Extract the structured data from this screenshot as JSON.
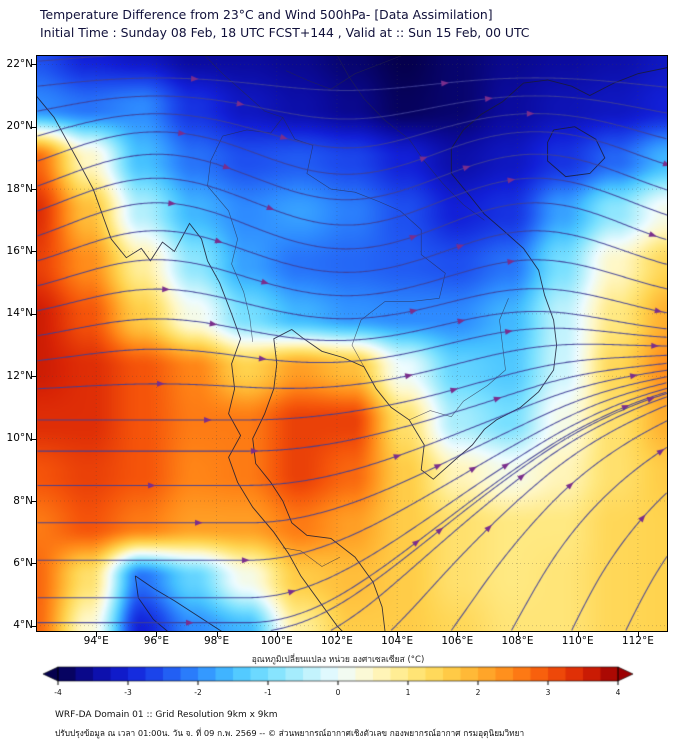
{
  "header": {
    "title_line1": "Temperature Difference from 23°C and Wind 500hPa- [Data Assimilation]",
    "title_line2": "Initial Time : Sunday 08 Feb, 18 UTC FCST+144 , Valid at ::  Sun 15 Feb, 00 UTC"
  },
  "axes": {
    "y_values": [
      22,
      20,
      18,
      16,
      14,
      12,
      10,
      8,
      6,
      4
    ],
    "y_ticks": [
      "22°N",
      "20°N",
      "18°N",
      "16°N",
      "14°N",
      "12°N",
      "10°N",
      "8°N",
      "6°N",
      "4°N"
    ],
    "x_values": [
      94,
      96,
      98,
      100,
      102,
      104,
      106,
      108,
      110,
      112
    ],
    "x_ticks": [
      "94°E",
      "96°E",
      "98°E",
      "100°E",
      "102°E",
      "104°E",
      "106°E",
      "108°E",
      "110°E",
      "112°E"
    ]
  },
  "colorbar": {
    "label": "อุณหภูมิเปลี่ยนแปลง หน่วย องศาเซลเซียส (°C)",
    "ticks": [
      -4,
      -3,
      -2,
      -1,
      0,
      1,
      2,
      3,
      4
    ],
    "min": -4,
    "max": 4,
    "segment_step": 0.25
  },
  "footer": {
    "line1": "WRF-DA Domain 01 :: Grid Resolution 9km x 9km",
    "line2": "ปรับปรุงข้อมูล ณ เวลา 01:00น. วัน จ. ที่ 09 ก.พ. 2569 -- © ส่วนพยากรณ์อากาศเชิงตัวเลข กองพยากรณ์อากาศ กรมอุตุนิยมวิทยา"
  },
  "chart_data": {
    "type": "heatmap",
    "title": "Temperature Difference from 23°C and Wind 500hPa- [Data Assimilation]",
    "variable": "temperature difference from 23°C (°C) with 500hPa wind streamlines",
    "lon_range": [
      92,
      113
    ],
    "lat_range": [
      3.8,
      22.3
    ],
    "grid": {
      "lons": [
        92,
        93.75,
        95.5,
        97.25,
        99,
        100.75,
        102.5,
        104.25,
        106,
        107.75,
        109.5,
        111.25,
        113
      ],
      "lats": [
        22.3,
        20.62,
        18.94,
        17.25,
        15.57,
        13.89,
        12.21,
        10.52,
        8.84,
        7.16,
        5.48,
        3.8
      ],
      "values": [
        [
          -2.5,
          -3,
          -3.2,
          -3.5,
          -3.5,
          -3.6,
          -3.8,
          -4,
          -3.8,
          -3.6,
          -3.5,
          -3.4,
          -3.2
        ],
        [
          -2,
          -2.2,
          -2,
          -2.8,
          -3.2,
          -3.4,
          -3.6,
          -3.9,
          -3.8,
          -3.5,
          -3.3,
          -3.2,
          -3
        ],
        [
          2.8,
          0.5,
          -1.5,
          -2.2,
          -2.5,
          -2.4,
          -2.6,
          -3,
          -3.4,
          -3.2,
          -2.8,
          -2.3,
          -1.6
        ],
        [
          3.4,
          1.8,
          -0.5,
          -1.6,
          -2,
          -1.8,
          -2.1,
          -2.5,
          -3,
          -2.8,
          -1.8,
          -0.8,
          0.2
        ],
        [
          3.2,
          2.4,
          0.8,
          -0.8,
          -1.8,
          -2.2,
          -2.3,
          -2.4,
          -2.5,
          -2.2,
          -1,
          0.5,
          1.4
        ],
        [
          3.6,
          3,
          1.6,
          0.2,
          -1,
          -1.6,
          -1.9,
          -2,
          -2,
          -1.6,
          -0.4,
          1,
          2
        ],
        [
          3.6,
          3.4,
          3,
          2.5,
          1.5,
          2.2,
          1.8,
          0,
          -1.2,
          -1.4,
          -0.3,
          1.4,
          2.4
        ],
        [
          3.4,
          3.4,
          3,
          2.6,
          2.6,
          3.2,
          3.2,
          1.2,
          -0.6,
          -1,
          0.2,
          1.2,
          2
        ],
        [
          3,
          3.2,
          3,
          2.5,
          2.6,
          3.2,
          2.8,
          1.6,
          0.6,
          0.2,
          0.6,
          1.2,
          1.6
        ],
        [
          2.6,
          3,
          2.6,
          2.2,
          2.2,
          2.6,
          2.2,
          1.6,
          1.2,
          1,
          1,
          1.4,
          1.5
        ],
        [
          2.8,
          1.2,
          -2.2,
          -1.2,
          0.2,
          1.6,
          1.8,
          1.6,
          1.2,
          1,
          1.1,
          1.4,
          1.5
        ],
        [
          2.8,
          0.4,
          -3,
          -2,
          -1.6,
          0.8,
          1.6,
          1.6,
          1.4,
          1.1,
          1.1,
          1.4,
          1.5
        ]
      ]
    },
    "color_scale": [
      [
        -4.0,
        "#05004d"
      ],
      [
        -3.5,
        "#0b0b9e"
      ],
      [
        -3.0,
        "#1220d8"
      ],
      [
        -2.5,
        "#1e50f0"
      ],
      [
        -2.0,
        "#2e8bff"
      ],
      [
        -1.5,
        "#46c2ff"
      ],
      [
        -1.0,
        "#78e0ff"
      ],
      [
        -0.5,
        "#b4f0fc"
      ],
      [
        0.0,
        "#eefcff"
      ],
      [
        0.5,
        "#fff8c8"
      ],
      [
        1.0,
        "#ffe982"
      ],
      [
        1.5,
        "#ffd34e"
      ],
      [
        2.0,
        "#ffb02f"
      ],
      [
        2.5,
        "#ff8517"
      ],
      [
        3.0,
        "#f5540a"
      ],
      [
        3.5,
        "#d92405"
      ],
      [
        4.0,
        "#9c0002"
      ]
    ],
    "wind": {
      "level": "500hPa",
      "style": "streamlines",
      "line_color": "#3f3f96",
      "arrow_color": "#7a2e8c",
      "pattern": "westerlies across the north with a trough near 99E; south-westerly flow curving northeast over the South China Sea in the south",
      "u0": 0.45,
      "u_lat_gain": 0.75,
      "wave_amp": 0.38,
      "wave_k": 0.5,
      "wave_ref_lon": 96,
      "fan_strength": 0.9,
      "seeds_left_lats": [
        22.1,
        21.3,
        20.5,
        19.7,
        18.9,
        18.1,
        17.3,
        16.5,
        15.7,
        14.9,
        14.1,
        13.3,
        12.5,
        11.6,
        10.6,
        9.6,
        8.5,
        7.3,
        6.1,
        4.9,
        4.1
      ],
      "seeds_bottom_lons": [
        99.8,
        101.8,
        103.8,
        105.8,
        107.8,
        109.8,
        111.6
      ]
    },
    "graticule": {
      "dash": "1,3",
      "color": "#444444",
      "opacity": 0.35
    },
    "map_outlines": {
      "coast": [
        [
          [
            92.0,
            21.0
          ],
          [
            92.6,
            20.3
          ],
          [
            93.0,
            19.6
          ],
          [
            93.4,
            18.9
          ],
          [
            93.9,
            18.0
          ],
          [
            94.2,
            17.2
          ],
          [
            94.5,
            16.4
          ],
          [
            95.0,
            15.8
          ],
          [
            95.5,
            16.1
          ],
          [
            95.8,
            15.7
          ],
          [
            96.2,
            16.3
          ],
          [
            96.6,
            16.0
          ],
          [
            97.1,
            16.9
          ],
          [
            97.5,
            16.4
          ],
          [
            97.7,
            15.7
          ],
          [
            98.1,
            15.0
          ],
          [
            98.5,
            14.0
          ],
          [
            98.8,
            13.2
          ],
          [
            98.5,
            12.4
          ],
          [
            98.6,
            11.6
          ],
          [
            98.4,
            10.8
          ],
          [
            98.8,
            10.1
          ],
          [
            98.4,
            9.4
          ],
          [
            98.7,
            8.6
          ],
          [
            99.2,
            7.8
          ],
          [
            99.9,
            7.0
          ],
          [
            100.4,
            6.3
          ],
          [
            100.8,
            5.6
          ],
          [
            101.4,
            4.8
          ],
          [
            102.0,
            4.0
          ],
          [
            102.2,
            3.8
          ]
        ],
        [
          [
            103.6,
            3.8
          ],
          [
            103.5,
            4.6
          ],
          [
            103.2,
            5.4
          ],
          [
            102.6,
            6.2
          ],
          [
            101.8,
            6.8
          ],
          [
            101.0,
            6.9
          ],
          [
            100.5,
            7.3
          ],
          [
            100.2,
            8.0
          ],
          [
            99.8,
            8.6
          ],
          [
            99.3,
            9.2
          ],
          [
            99.2,
            10.0
          ],
          [
            99.6,
            10.8
          ],
          [
            99.9,
            11.6
          ],
          [
            100.0,
            12.4
          ],
          [
            99.9,
            13.2
          ],
          [
            100.5,
            13.5
          ],
          [
            100.9,
            13.2
          ],
          [
            101.5,
            12.8
          ],
          [
            102.2,
            12.6
          ],
          [
            102.9,
            12.3
          ],
          [
            103.3,
            11.6
          ],
          [
            103.8,
            11.0
          ],
          [
            104.4,
            10.6
          ],
          [
            104.9,
            9.8
          ],
          [
            104.8,
            9.0
          ],
          [
            105.2,
            8.7
          ],
          [
            105.9,
            9.3
          ],
          [
            106.5,
            9.8
          ],
          [
            106.9,
            10.3
          ],
          [
            107.3,
            10.6
          ],
          [
            108.1,
            11.0
          ],
          [
            108.7,
            11.5
          ],
          [
            109.2,
            12.2
          ],
          [
            109.3,
            13.0
          ],
          [
            109.2,
            13.8
          ],
          [
            108.9,
            14.6
          ],
          [
            108.7,
            15.4
          ],
          [
            108.2,
            16.1
          ],
          [
            107.5,
            16.7
          ],
          [
            106.9,
            17.2
          ],
          [
            106.4,
            17.8
          ],
          [
            105.8,
            18.5
          ],
          [
            105.8,
            19.3
          ],
          [
            106.2,
            19.9
          ],
          [
            106.8,
            20.4
          ],
          [
            107.5,
            20.8
          ],
          [
            108.2,
            21.4
          ],
          [
            109.0,
            21.5
          ],
          [
            109.8,
            21.3
          ],
          [
            110.4,
            21.0
          ],
          [
            111.2,
            21.4
          ],
          [
            112.0,
            21.7
          ],
          [
            113.0,
            21.9
          ]
        ],
        [
          [
            109.2,
            19.9
          ],
          [
            109.9,
            20.0
          ],
          [
            110.6,
            19.6
          ],
          [
            110.9,
            19.0
          ],
          [
            110.4,
            18.5
          ],
          [
            109.6,
            18.4
          ],
          [
            109.0,
            18.9
          ],
          [
            109.0,
            19.5
          ],
          [
            109.2,
            19.9
          ]
        ],
        [
          [
            95.3,
            5.6
          ],
          [
            95.9,
            5.2
          ],
          [
            96.6,
            4.8
          ],
          [
            97.4,
            4.3
          ],
          [
            98.2,
            3.8
          ]
        ],
        [
          [
            95.3,
            5.6
          ],
          [
            95.4,
            4.9
          ],
          [
            95.9,
            4.2
          ],
          [
            96.4,
            3.8
          ]
        ]
      ],
      "borders": [
        [
          [
            98.2,
            19.7
          ],
          [
            97.8,
            18.9
          ],
          [
            97.7,
            18.1
          ],
          [
            98.4,
            17.3
          ],
          [
            98.7,
            16.4
          ],
          [
            98.5,
            15.6
          ],
          [
            98.9,
            14.7
          ],
          [
            99.1,
            13.9
          ],
          [
            99.2,
            13.1
          ]
        ],
        [
          [
            100.2,
            20.3
          ],
          [
            100.6,
            19.6
          ],
          [
            101.2,
            19.4
          ],
          [
            101.0,
            18.5
          ],
          [
            101.8,
            18.0
          ],
          [
            102.6,
            17.9
          ],
          [
            103.4,
            17.6
          ],
          [
            104.1,
            17.3
          ],
          [
            104.8,
            16.7
          ],
          [
            104.8,
            15.9
          ],
          [
            105.6,
            15.3
          ],
          [
            105.4,
            14.5
          ]
        ],
        [
          [
            105.4,
            14.5
          ],
          [
            104.5,
            14.4
          ],
          [
            103.6,
            14.4
          ],
          [
            102.8,
            13.8
          ],
          [
            102.5,
            13.0
          ],
          [
            102.9,
            12.3
          ]
        ],
        [
          [
            102.0,
            22.3
          ],
          [
            102.4,
            21.6
          ],
          [
            102.9,
            20.9
          ],
          [
            103.6,
            20.2
          ],
          [
            104.4,
            19.6
          ],
          [
            104.9,
            18.9
          ],
          [
            105.5,
            18.2
          ],
          [
            106.2,
            17.5
          ],
          [
            106.9,
            17.0
          ]
        ],
        [
          [
            100.3,
            21.8
          ],
          [
            101.0,
            21.5
          ],
          [
            101.8,
            21.2
          ],
          [
            102.6,
            21.7
          ],
          [
            103.4,
            22.0
          ],
          [
            104.2,
            22.3
          ]
        ],
        [
          [
            104.4,
            10.6
          ],
          [
            105.1,
            10.9
          ],
          [
            105.8,
            10.7
          ],
          [
            106.2,
            11.2
          ],
          [
            107.0,
            11.7
          ],
          [
            107.6,
            12.2
          ],
          [
            107.5,
            13.0
          ],
          [
            107.4,
            13.8
          ],
          [
            107.7,
            14.5
          ]
        ],
        [
          [
            97.6,
            22.3
          ],
          [
            98.2,
            21.7
          ],
          [
            98.9,
            21.1
          ],
          [
            99.6,
            20.5
          ],
          [
            100.2,
            20.3
          ]
        ],
        [
          [
            100.2,
            20.3
          ],
          [
            99.8,
            19.8
          ],
          [
            99.0,
            19.9
          ],
          [
            98.2,
            19.7
          ]
        ],
        [
          [
            100.2,
            6.5
          ],
          [
            100.8,
            6.4
          ],
          [
            101.5,
            5.9
          ],
          [
            102.1,
            6.2
          ]
        ]
      ]
    }
  }
}
